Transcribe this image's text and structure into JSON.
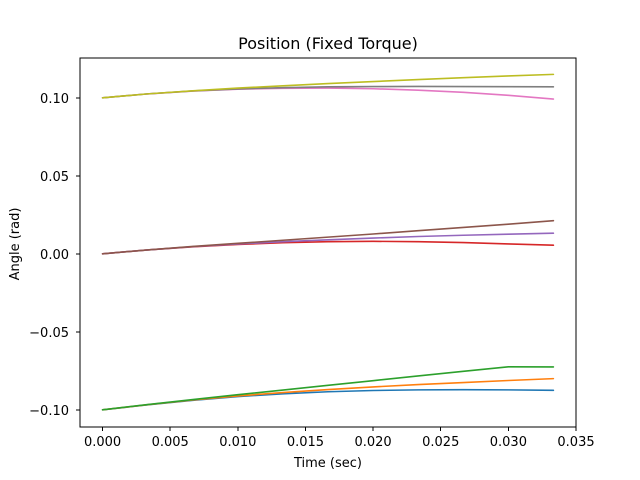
{
  "chart_data": {
    "type": "line",
    "title": "Position (Fixed Torque)",
    "xlabel": "Time (sec)",
    "ylabel": "Angle (rad)",
    "xlim": [
      -0.00167,
      0.035
    ],
    "ylim": [
      -0.111,
      0.1255
    ],
    "x_ticks": [
      0.0,
      0.005,
      0.01,
      0.015,
      0.02,
      0.025,
      0.03,
      0.035
    ],
    "x_tick_labels": [
      "0.000",
      "0.005",
      "0.010",
      "0.015",
      "0.020",
      "0.025",
      "0.030",
      "0.035"
    ],
    "y_ticks": [
      -0.1,
      -0.05,
      0.0,
      0.05,
      0.1
    ],
    "y_tick_labels": [
      "−0.10",
      "−0.05",
      "0.00",
      "0.05",
      "0.10"
    ],
    "grid": false,
    "x": [
      0.0,
      0.00333,
      0.00667,
      0.01,
      0.01333,
      0.01667,
      0.02,
      0.02333,
      0.02667,
      0.03,
      0.03333
    ],
    "series": [
      {
        "color": "#1f77b4",
        "values": [
          -0.1,
          -0.0968,
          -0.0939,
          -0.0915,
          -0.0897,
          -0.0884,
          -0.0876,
          -0.0872,
          -0.0871,
          -0.0872,
          -0.0875
        ]
      },
      {
        "color": "#ff7f0e",
        "values": [
          -0.1,
          -0.0967,
          -0.0937,
          -0.0911,
          -0.0889,
          -0.087,
          -0.0853,
          -0.0838,
          -0.0825,
          -0.0812,
          -0.08
        ]
      },
      {
        "color": "#2ca02c",
        "values": [
          -0.1,
          -0.0966,
          -0.0934,
          -0.0903,
          -0.0873,
          -0.0843,
          -0.0813,
          -0.0783,
          -0.0753,
          -0.0724,
          -0.0725
        ]
      },
      {
        "color": "#d62728",
        "values": [
          0.0,
          0.0025,
          0.0045,
          0.006,
          0.0071,
          0.0078,
          0.008,
          0.0078,
          0.0072,
          0.0063,
          0.0055
        ]
      },
      {
        "color": "#9467bd",
        "values": [
          0.0,
          0.0025,
          0.0046,
          0.0063,
          0.0078,
          0.009,
          0.0101,
          0.0111,
          0.0119,
          0.0126,
          0.0132
        ]
      },
      {
        "color": "#8c564b",
        "values": [
          0.0,
          0.0025,
          0.0047,
          0.0067,
          0.0087,
          0.0107,
          0.0127,
          0.0148,
          0.0169,
          0.019,
          0.0212
        ]
      },
      {
        "color": "#e377c2",
        "values": [
          0.1,
          0.1025,
          0.1043,
          0.1055,
          0.1061,
          0.1062,
          0.1058,
          0.1049,
          0.1035,
          0.1016,
          0.0992
        ]
      },
      {
        "color": "#7f7f7f",
        "values": [
          0.1,
          0.1025,
          0.1044,
          0.1057,
          0.1065,
          0.107,
          0.1072,
          0.1073,
          0.1072,
          0.1071,
          0.107
        ]
      },
      {
        "color": "#bcbd22",
        "values": [
          0.1,
          0.1025,
          0.1045,
          0.1062,
          0.1077,
          0.1091,
          0.1104,
          0.1117,
          0.1129,
          0.114,
          0.115
        ]
      }
    ]
  }
}
